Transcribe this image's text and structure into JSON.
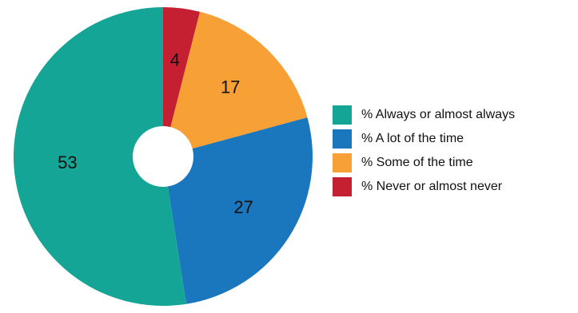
{
  "chart_data": {
    "type": "pie",
    "donut": true,
    "legend_position": "right",
    "series": [
      {
        "name": "% Never or almost never",
        "value": 4,
        "color": "#c42032"
      },
      {
        "name": "% Some of the time",
        "value": 17,
        "color": "#f7a035"
      },
      {
        "name": "% A lot of the time",
        "value": 27,
        "color": "#1a77bd"
      },
      {
        "name": "% Always or almost always",
        "value": 53,
        "color": "#14a596"
      }
    ],
    "legend": [
      {
        "label": "% Always or almost always",
        "color": "#14a596"
      },
      {
        "label": "% A lot of the time",
        "color": "#1a77bd"
      },
      {
        "label": "% Some of the time",
        "color": "#f7a035"
      },
      {
        "label": "% Never or almost never",
        "color": "#c42032"
      }
    ]
  }
}
